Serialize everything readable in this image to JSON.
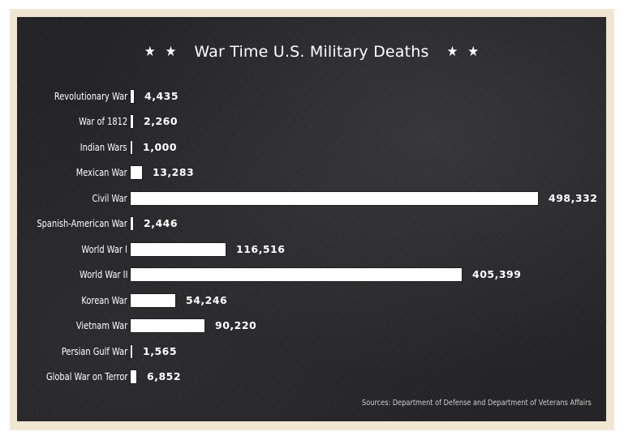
{
  "chart_data": {
    "type": "bar",
    "orientation": "horizontal",
    "title": "War Time U.S. Military Deaths",
    "xlabel": "",
    "ylabel": "",
    "grid": false,
    "legend": null,
    "categories": [
      "Revolutionary War",
      "War of 1812",
      "Indian Wars",
      "Mexican War",
      "Civil War",
      "Spanish-American War",
      "World War I",
      "World War II",
      "Korean War",
      "Vietnam War",
      "Persian Gulf War",
      "Global War on Terror"
    ],
    "values": [
      4435,
      2260,
      1000,
      13283,
      498332,
      2446,
      116516,
      405399,
      54246,
      90220,
      1565,
      6852
    ],
    "value_labels": [
      "4,435",
      "2,260",
      "1,000",
      "13,283",
      "498,332",
      "2,446",
      "116,516",
      "405,399",
      "54,246",
      "90,220",
      "1,565",
      "6,852"
    ],
    "bar_pixel_widths": [
      4,
      3,
      2,
      14,
      502,
      3,
      117,
      408,
      55,
      91,
      2,
      7
    ],
    "source": "Sources: Department of Defense and Department of Veterans Affairs"
  },
  "decoration": {
    "stars_left": [
      "★",
      "★"
    ],
    "stars_right": [
      "★",
      "★"
    ]
  },
  "colors": {
    "frame": "#f1e6d3",
    "panel": "#232325",
    "bar": "#ffffff",
    "text": "#ffffff"
  }
}
